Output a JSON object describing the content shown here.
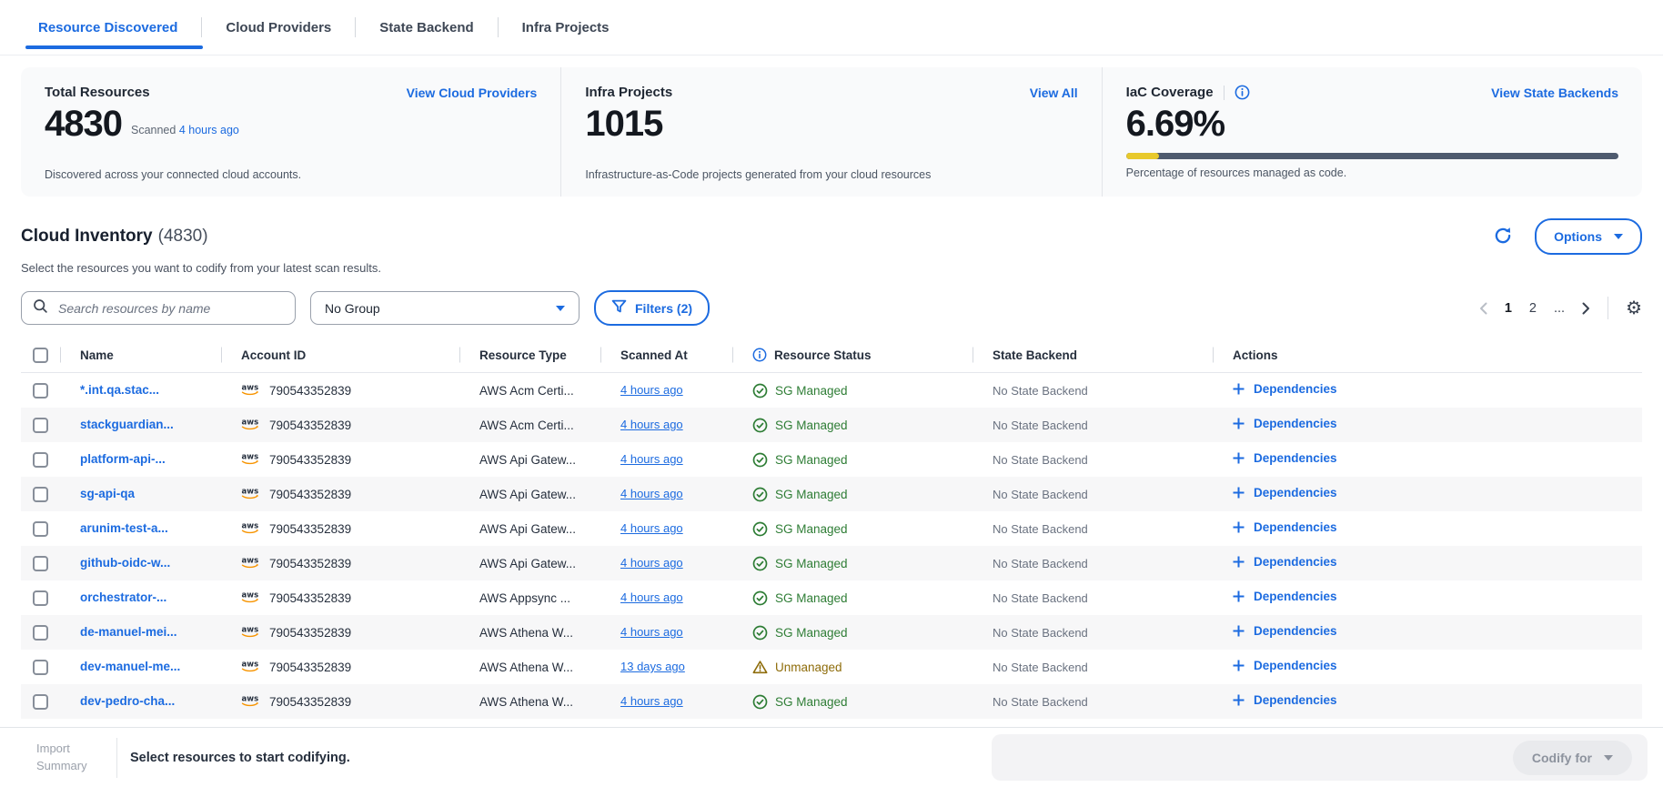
{
  "tabs": [
    {
      "label": "Resource Discovered",
      "active": true
    },
    {
      "label": "Cloud Providers",
      "active": false
    },
    {
      "label": "State Backend",
      "active": false
    },
    {
      "label": "Infra Projects",
      "active": false
    }
  ],
  "stats": {
    "total_resources": {
      "title": "Total Resources",
      "value": "4830",
      "scanned_prefix": "Scanned",
      "scanned_link": "4 hours ago",
      "description": "Discovered across your connected cloud accounts.",
      "action": "View Cloud Providers"
    },
    "infra_projects": {
      "title": "Infra Projects",
      "value": "1015",
      "description": "Infrastructure-as-Code projects generated from your cloud resources",
      "action": "View All"
    },
    "iac_coverage": {
      "title": "IaC Coverage",
      "value": "6.69%",
      "percent": 6.69,
      "description": "Percentage of resources managed as code.",
      "action": "View State Backends"
    }
  },
  "inventory": {
    "title": "Cloud Inventory",
    "count": "(4830)",
    "subtitle": "Select the resources you want to codify from your latest scan results.",
    "options_label": "Options",
    "search_placeholder": "Search resources by name",
    "group_dropdown": "No Group",
    "filters_label": "Filters (2)",
    "pagination": {
      "pages": [
        {
          "label": "1",
          "current": true
        },
        {
          "label": "2",
          "current": false
        },
        {
          "label": "...",
          "current": false
        }
      ]
    }
  },
  "table": {
    "columns": [
      "Name",
      "Account ID",
      "Resource Type",
      "Scanned At",
      "Resource Status",
      "State Backend",
      "Actions"
    ],
    "rows": [
      {
        "name": "*.int.qa.stac...",
        "account_id": "790543352839",
        "resource_type": "AWS Acm Certi...",
        "scanned_at": "4 hours ago",
        "status": "SG Managed",
        "status_type": "managed",
        "state_backend": "No State Backend",
        "action": "Dependencies"
      },
      {
        "name": "stackguardian...",
        "account_id": "790543352839",
        "resource_type": "AWS Acm Certi...",
        "scanned_at": "4 hours ago",
        "status": "SG Managed",
        "status_type": "managed",
        "state_backend": "No State Backend",
        "action": "Dependencies"
      },
      {
        "name": "platform-api-...",
        "account_id": "790543352839",
        "resource_type": "AWS Api Gatew...",
        "scanned_at": "4 hours ago",
        "status": "SG Managed",
        "status_type": "managed",
        "state_backend": "No State Backend",
        "action": "Dependencies"
      },
      {
        "name": "sg-api-qa",
        "account_id": "790543352839",
        "resource_type": "AWS Api Gatew...",
        "scanned_at": "4 hours ago",
        "status": "SG Managed",
        "status_type": "managed",
        "state_backend": "No State Backend",
        "action": "Dependencies"
      },
      {
        "name": "arunim-test-a...",
        "account_id": "790543352839",
        "resource_type": "AWS Api Gatew...",
        "scanned_at": "4 hours ago",
        "status": "SG Managed",
        "status_type": "managed",
        "state_backend": "No State Backend",
        "action": "Dependencies"
      },
      {
        "name": "github-oidc-w...",
        "account_id": "790543352839",
        "resource_type": "AWS Api Gatew...",
        "scanned_at": "4 hours ago",
        "status": "SG Managed",
        "status_type": "managed",
        "state_backend": "No State Backend",
        "action": "Dependencies"
      },
      {
        "name": "orchestrator-...",
        "account_id": "790543352839",
        "resource_type": "AWS Appsync ...",
        "scanned_at": "4 hours ago",
        "status": "SG Managed",
        "status_type": "managed",
        "state_backend": "No State Backend",
        "action": "Dependencies"
      },
      {
        "name": "de-manuel-mei...",
        "account_id": "790543352839",
        "resource_type": "AWS Athena W...",
        "scanned_at": "4 hours ago",
        "status": "SG Managed",
        "status_type": "managed",
        "state_backend": "No State Backend",
        "action": "Dependencies"
      },
      {
        "name": "dev-manuel-me...",
        "account_id": "790543352839",
        "resource_type": "AWS Athena W...",
        "scanned_at": "13 days ago",
        "status": "Unmanaged",
        "status_type": "unmanaged",
        "state_backend": "No State Backend",
        "action": "Dependencies"
      },
      {
        "name": "dev-pedro-cha...",
        "account_id": "790543352839",
        "resource_type": "AWS Athena W...",
        "scanned_at": "4 hours ago",
        "status": "SG Managed",
        "status_type": "managed",
        "state_backend": "No State Backend",
        "action": "Dependencies"
      }
    ]
  },
  "footer": {
    "summary_label": "Import Summary",
    "message": "Select resources to start codifying.",
    "codify_label": "Codify for"
  },
  "icons": {
    "search": "magnifier",
    "filter": "funnel",
    "refresh": "circular-arrow",
    "settings": "gear",
    "info": "circled-i",
    "aws": "aws-logo",
    "managed": "check-circle",
    "unmanaged": "warning-triangle",
    "dependencies": "plus",
    "dropdown": "triangle-down",
    "prev_page": "chevron-left",
    "next_page": "chevron-right"
  },
  "colors": {
    "accent_blue": "#1c6be0",
    "green": "#2e7d35",
    "warning": "#8e6c0a",
    "aws_orange": "#f79400",
    "progress_yellow": "#e8c92c",
    "progress_track": "#4e5a6e",
    "row_alt": "#f7f7f8",
    "panel_bg": "#f9fafb"
  }
}
